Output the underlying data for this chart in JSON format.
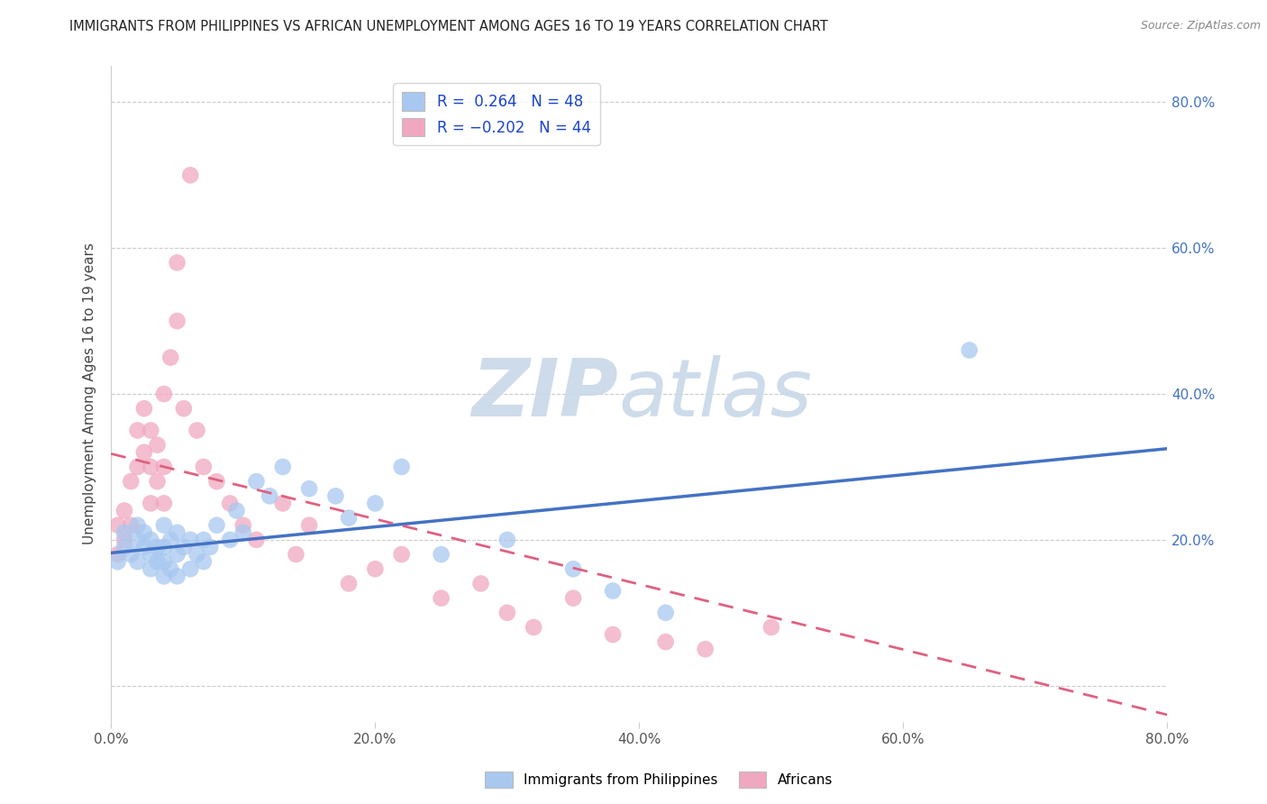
{
  "title": "IMMIGRANTS FROM PHILIPPINES VS AFRICAN UNEMPLOYMENT AMONG AGES 16 TO 19 YEARS CORRELATION CHART",
  "source": "Source: ZipAtlas.com",
  "ylabel": "Unemployment Among Ages 16 to 19 years",
  "xlim": [
    0.0,
    0.8
  ],
  "ylim": [
    -0.05,
    0.85
  ],
  "yticks": [
    0.0,
    0.2,
    0.4,
    0.6,
    0.8
  ],
  "xticks": [
    0.0,
    0.2,
    0.4,
    0.6,
    0.8
  ],
  "xtick_labels": [
    "0.0%",
    "20.0%",
    "40.0%",
    "60.0%",
    "80.0%"
  ],
  "ytick_labels": [
    "",
    "20.0%",
    "40.0%",
    "60.0%",
    "80.0%"
  ],
  "blue_R": 0.264,
  "blue_N": 48,
  "pink_R": -0.202,
  "pink_N": 44,
  "blue_color": "#a8c8f0",
  "pink_color": "#f0a8c0",
  "blue_line_color": "#4472c4",
  "pink_line_color": "#e06080",
  "legend_label_blue": "Immigrants from Philippines",
  "legend_label_pink": "Africans",
  "blue_scatter_x": [
    0.005,
    0.01,
    0.01,
    0.015,
    0.02,
    0.02,
    0.02,
    0.025,
    0.025,
    0.03,
    0.03,
    0.03,
    0.035,
    0.035,
    0.04,
    0.04,
    0.04,
    0.04,
    0.045,
    0.045,
    0.05,
    0.05,
    0.05,
    0.055,
    0.06,
    0.06,
    0.065,
    0.07,
    0.07,
    0.075,
    0.08,
    0.09,
    0.095,
    0.1,
    0.11,
    0.12,
    0.13,
    0.15,
    0.17,
    0.18,
    0.2,
    0.22,
    0.25,
    0.3,
    0.35,
    0.38,
    0.42,
    0.65
  ],
  "blue_scatter_y": [
    0.17,
    0.19,
    0.21,
    0.18,
    0.17,
    0.2,
    0.22,
    0.19,
    0.21,
    0.16,
    0.18,
    0.2,
    0.17,
    0.19,
    0.15,
    0.17,
    0.19,
    0.22,
    0.16,
    0.2,
    0.15,
    0.18,
    0.21,
    0.19,
    0.16,
    0.2,
    0.18,
    0.17,
    0.2,
    0.19,
    0.22,
    0.2,
    0.24,
    0.21,
    0.28,
    0.26,
    0.3,
    0.27,
    0.26,
    0.23,
    0.25,
    0.3,
    0.18,
    0.2,
    0.16,
    0.13,
    0.1,
    0.46
  ],
  "pink_scatter_x": [
    0.005,
    0.005,
    0.01,
    0.01,
    0.015,
    0.015,
    0.02,
    0.02,
    0.025,
    0.025,
    0.03,
    0.03,
    0.03,
    0.035,
    0.035,
    0.04,
    0.04,
    0.04,
    0.045,
    0.05,
    0.05,
    0.055,
    0.06,
    0.065,
    0.07,
    0.08,
    0.09,
    0.1,
    0.11,
    0.13,
    0.14,
    0.15,
    0.18,
    0.2,
    0.22,
    0.25,
    0.28,
    0.3,
    0.32,
    0.35,
    0.38,
    0.42,
    0.45,
    0.5
  ],
  "pink_scatter_y": [
    0.18,
    0.22,
    0.2,
    0.24,
    0.22,
    0.28,
    0.3,
    0.35,
    0.32,
    0.38,
    0.25,
    0.3,
    0.35,
    0.28,
    0.33,
    0.25,
    0.3,
    0.4,
    0.45,
    0.5,
    0.58,
    0.38,
    0.7,
    0.35,
    0.3,
    0.28,
    0.25,
    0.22,
    0.2,
    0.25,
    0.18,
    0.22,
    0.14,
    0.16,
    0.18,
    0.12,
    0.14,
    0.1,
    0.08,
    0.12,
    0.07,
    0.06,
    0.05,
    0.08
  ],
  "blue_line_x0": 0.0,
  "blue_line_x1": 0.8,
  "blue_line_y0": 0.182,
  "blue_line_y1": 0.325,
  "pink_line_x0": 0.0,
  "pink_line_x1": 0.8,
  "pink_line_y0": 0.318,
  "pink_line_y1": -0.04
}
